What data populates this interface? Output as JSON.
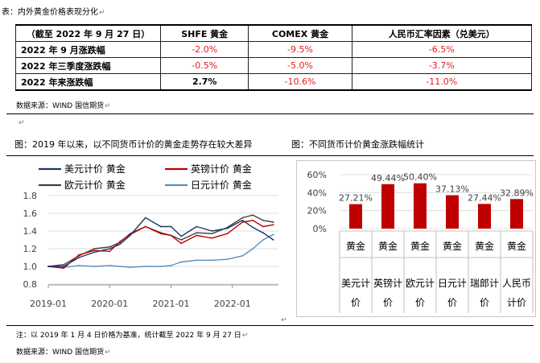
{
  "table_title": "表：内外黄金价格表现分化",
  "table": {
    "header": [
      "（截至 2022 年 9 月 27 日）",
      "SHFE 黄金",
      "COMEX 黄金",
      "人民币汇率因素（兑美元）"
    ],
    "rows": [
      {
        "label": "2022 年 9 月涨跌幅",
        "values": [
          "-2.0%",
          "-9.5%",
          "-6.5%"
        ]
      },
      {
        "label": "2022 年三季度涨跌幅",
        "values": [
          "-0.5%",
          "-5.0%",
          "-3.7%"
        ]
      },
      {
        "label": "2022 年来涨跌幅",
        "values": [
          "2.7%",
          "-10.6%",
          "-11.0%"
        ]
      }
    ]
  },
  "table_source": "数据来源：WIND 国信期货",
  "fig_left_title": "图：2019 年以来，以不同货币计价的黄金走势存在较大差异",
  "fig_right_title": "图：不同货币计价黄金涨跌幅统计",
  "note": "注：以 2019 年 1 月 4 日价格为基准，统计截至 2022 年 9 月 27 日",
  "bottom_source": "数据来源：WIND 国信期货",
  "chart_data": [
    {
      "type": "line",
      "series": [
        {
          "name": "美元计价 黄金",
          "color": "#1f3864",
          "x": [
            "2019-01",
            "2019-04",
            "2019-07",
            "2019-10",
            "2020-01",
            "2020-03",
            "2020-05",
            "2020-08",
            "2020-11",
            "2021-01",
            "2021-03",
            "2021-06",
            "2021-09",
            "2021-12",
            "2022-03",
            "2022-05",
            "2022-07",
            "2022-09"
          ],
          "y": [
            1.0,
            1.0,
            1.1,
            1.16,
            1.2,
            1.25,
            1.35,
            1.55,
            1.45,
            1.45,
            1.34,
            1.45,
            1.4,
            1.43,
            1.52,
            1.44,
            1.38,
            1.3
          ]
        },
        {
          "name": "英镑计价 黄金",
          "color": "#c00000",
          "x": [
            "2019-01",
            "2019-04",
            "2019-07",
            "2019-10",
            "2020-01",
            "2020-03",
            "2020-05",
            "2020-08",
            "2020-11",
            "2021-01",
            "2021-03",
            "2021-06",
            "2021-09",
            "2021-12",
            "2022-03",
            "2022-05",
            "2022-07",
            "2022-09"
          ],
          "y": [
            1.0,
            0.98,
            1.13,
            1.18,
            1.17,
            1.28,
            1.36,
            1.45,
            1.37,
            1.35,
            1.26,
            1.35,
            1.32,
            1.37,
            1.5,
            1.52,
            1.45,
            1.47
          ]
        },
        {
          "name": "欧元计价 黄金",
          "color": "#404040",
          "x": [
            "2019-01",
            "2019-04",
            "2019-07",
            "2019-10",
            "2020-01",
            "2020-03",
            "2020-05",
            "2020-08",
            "2020-11",
            "2021-01",
            "2021-03",
            "2021-06",
            "2021-09",
            "2021-12",
            "2022-03",
            "2022-05",
            "2022-07",
            "2022-09"
          ],
          "y": [
            1.0,
            1.02,
            1.12,
            1.2,
            1.22,
            1.27,
            1.37,
            1.45,
            1.38,
            1.35,
            1.3,
            1.38,
            1.37,
            1.44,
            1.55,
            1.58,
            1.52,
            1.5
          ]
        },
        {
          "name": "日元计价 黄金",
          "color": "#5b8fbf",
          "x": [
            "2019-01",
            "2019-04",
            "2019-07",
            "2019-10",
            "2020-01",
            "2020-03",
            "2020-05",
            "2020-08",
            "2020-11",
            "2021-01",
            "2021-03",
            "2021-06",
            "2021-09",
            "2021-12",
            "2022-03",
            "2022-05",
            "2022-07",
            "2022-09"
          ],
          "y": [
            1.0,
            0.99,
            1.01,
            1.0,
            1.01,
            1.0,
            0.99,
            1.0,
            1.0,
            1.01,
            1.05,
            1.07,
            1.07,
            1.08,
            1.12,
            1.2,
            1.3,
            1.36
          ]
        }
      ],
      "y_ticks": [
        "1.8",
        "1.6",
        "1.4",
        "1.2",
        "1.0",
        "0.8"
      ],
      "ylim": [
        0.8,
        1.8
      ],
      "x_ticks": [
        "2019-01",
        "2020-01",
        "2021-01",
        "2022-01"
      ],
      "legend_position": "top"
    },
    {
      "type": "bar",
      "categories": [
        "黄金 美元计价",
        "黄金 英镑计价",
        "黄金 欧元计价",
        "黄金 日元计价",
        "黄金 瑞郎计价",
        "黄金 人民币计价"
      ],
      "category_lines": [
        [
          "黄金",
          "美元计",
          "价"
        ],
        [
          "黄金",
          "英镑计",
          "价"
        ],
        [
          "黄金",
          "欧元计",
          "价"
        ],
        [
          "黄金",
          "日元计",
          "价"
        ],
        [
          "黄金",
          "瑞郎计",
          "价"
        ],
        [
          "黄金",
          "人民币",
          "计价"
        ]
      ],
      "values": [
        27.21,
        49.44,
        50.4,
        37.13,
        27.44,
        32.89
      ],
      "labels": [
        "27.21%",
        "49.44%",
        "50.40%",
        "37.13%",
        "27.44%",
        "32.89%"
      ],
      "y_ticks": [
        "60%",
        "40%",
        "20%",
        "0%"
      ],
      "ylim": [
        0,
        60
      ],
      "bar_color": "#c00000"
    }
  ]
}
